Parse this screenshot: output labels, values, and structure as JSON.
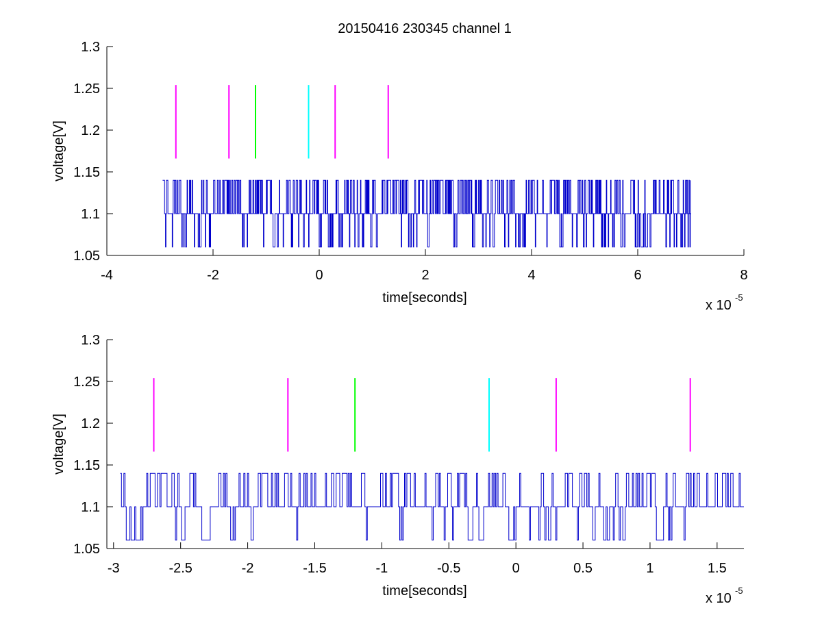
{
  "figure": {
    "title": "20150416 230345 channel 1"
  },
  "chart_data": [
    {
      "type": "line",
      "title": "20150416 230345 channel 1",
      "xlabel": "time[seconds]",
      "ylabel": "voltage[V]",
      "x_multiplier_label": "x 10",
      "x_multiplier_exponent": "-5",
      "xlim": [
        -4,
        8
      ],
      "ylim": [
        1.05,
        1.3
      ],
      "x_ticks": [
        -4,
        -2,
        0,
        2,
        4,
        6,
        8
      ],
      "x_tick_labels": [
        "-4",
        "-2",
        "0",
        "2",
        "4",
        "6",
        "8"
      ],
      "y_ticks": [
        1.05,
        1.1,
        1.15,
        1.2,
        1.25,
        1.3
      ],
      "y_tick_labels": [
        "1.05",
        "1.1",
        "1.15",
        "1.2",
        "1.25",
        "1.3"
      ],
      "grid": false,
      "signal": {
        "color": "#0000cc",
        "x_range": [
          -2.95,
          7.0
        ],
        "levels": [
          1.06,
          1.1,
          1.14
        ]
      },
      "markers": [
        {
          "x": -2.7,
          "y_range": [
            1.166,
            1.254
          ],
          "color": "#ff00ff"
        },
        {
          "x": -1.7,
          "y_range": [
            1.166,
            1.254
          ],
          "color": "#ff00ff"
        },
        {
          "x": -1.2,
          "y_range": [
            1.166,
            1.254
          ],
          "color": "#00ff00"
        },
        {
          "x": -0.2,
          "y_range": [
            1.166,
            1.254
          ],
          "color": "#00ffff"
        },
        {
          "x": 0.3,
          "y_range": [
            1.166,
            1.254
          ],
          "color": "#ff00ff"
        },
        {
          "x": 1.3,
          "y_range": [
            1.166,
            1.254
          ],
          "color": "#ff00ff"
        }
      ]
    },
    {
      "type": "line",
      "title": "",
      "xlabel": "time[seconds]",
      "ylabel": "voltage[V]",
      "x_multiplier_label": "x 10",
      "x_multiplier_exponent": "-5",
      "xlim": [
        -3.05,
        1.7
      ],
      "ylim": [
        1.05,
        1.3
      ],
      "x_ticks": [
        -3,
        -2.5,
        -2,
        -1.5,
        -1,
        -0.5,
        0,
        0.5,
        1,
        1.5
      ],
      "x_tick_labels": [
        "-3",
        "-2.5",
        "-2",
        "-1.5",
        "-1",
        "-0.5",
        "0",
        "0.5",
        "1",
        "1.5"
      ],
      "y_ticks": [
        1.05,
        1.1,
        1.15,
        1.2,
        1.25,
        1.3
      ],
      "y_tick_labels": [
        "1.05",
        "1.1",
        "1.15",
        "1.2",
        "1.25",
        "1.3"
      ],
      "grid": false,
      "signal": {
        "color": "#0000cc",
        "x_range": [
          -2.95,
          1.7
        ],
        "levels": [
          1.06,
          1.1,
          1.14
        ]
      },
      "markers": [
        {
          "x": -2.7,
          "y_range": [
            1.166,
            1.254
          ],
          "color": "#ff00ff"
        },
        {
          "x": -1.7,
          "y_range": [
            1.166,
            1.254
          ],
          "color": "#ff00ff"
        },
        {
          "x": -1.2,
          "y_range": [
            1.166,
            1.254
          ],
          "color": "#00ff00"
        },
        {
          "x": -0.2,
          "y_range": [
            1.166,
            1.254
          ],
          "color": "#00ffff"
        },
        {
          "x": 0.3,
          "y_range": [
            1.166,
            1.254
          ],
          "color": "#ff00ff"
        },
        {
          "x": 1.3,
          "y_range": [
            1.166,
            1.254
          ],
          "color": "#ff00ff"
        }
      ]
    }
  ]
}
